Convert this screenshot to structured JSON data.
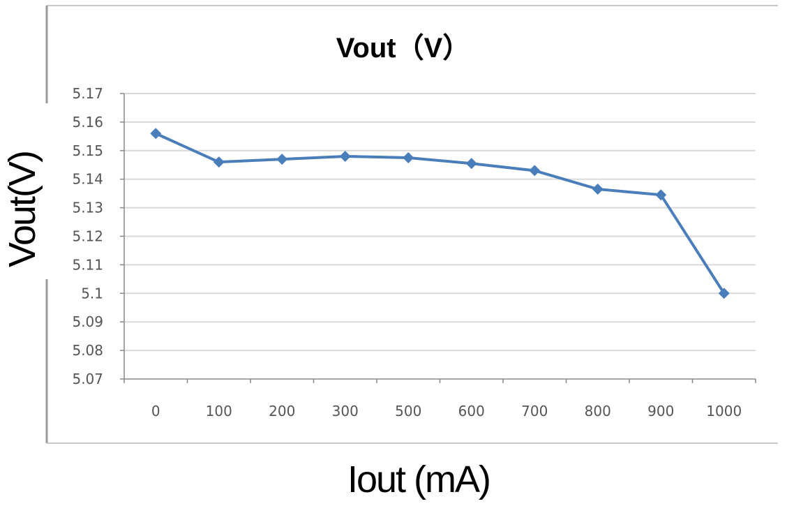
{
  "chart_data": {
    "type": "line",
    "title": "Vout（V）",
    "xlabel": "Iout (mA)",
    "ylabel": "Vout(V)",
    "categories": [
      "0",
      "100",
      "200",
      "300",
      "500",
      "600",
      "700",
      "800",
      "900",
      "1000"
    ],
    "series": [
      {
        "values": [
          5.156,
          5.146,
          5.147,
          5.148,
          5.1475,
          5.1455,
          5.143,
          5.1365,
          5.1345,
          5.1
        ]
      }
    ],
    "yticks": [
      "5.07",
      "5.08",
      "5.09",
      "5.1",
      "5.11",
      "5.12",
      "5.13",
      "5.14",
      "5.15",
      "5.16",
      "5.17"
    ],
    "ylim": [
      5.07,
      5.17
    ],
    "grid": true,
    "legend": "none",
    "colors": {
      "line": "#4a7ebb",
      "grid": "#d9d9d9",
      "axis": "#888888",
      "frame": "#c8c8c8"
    }
  }
}
